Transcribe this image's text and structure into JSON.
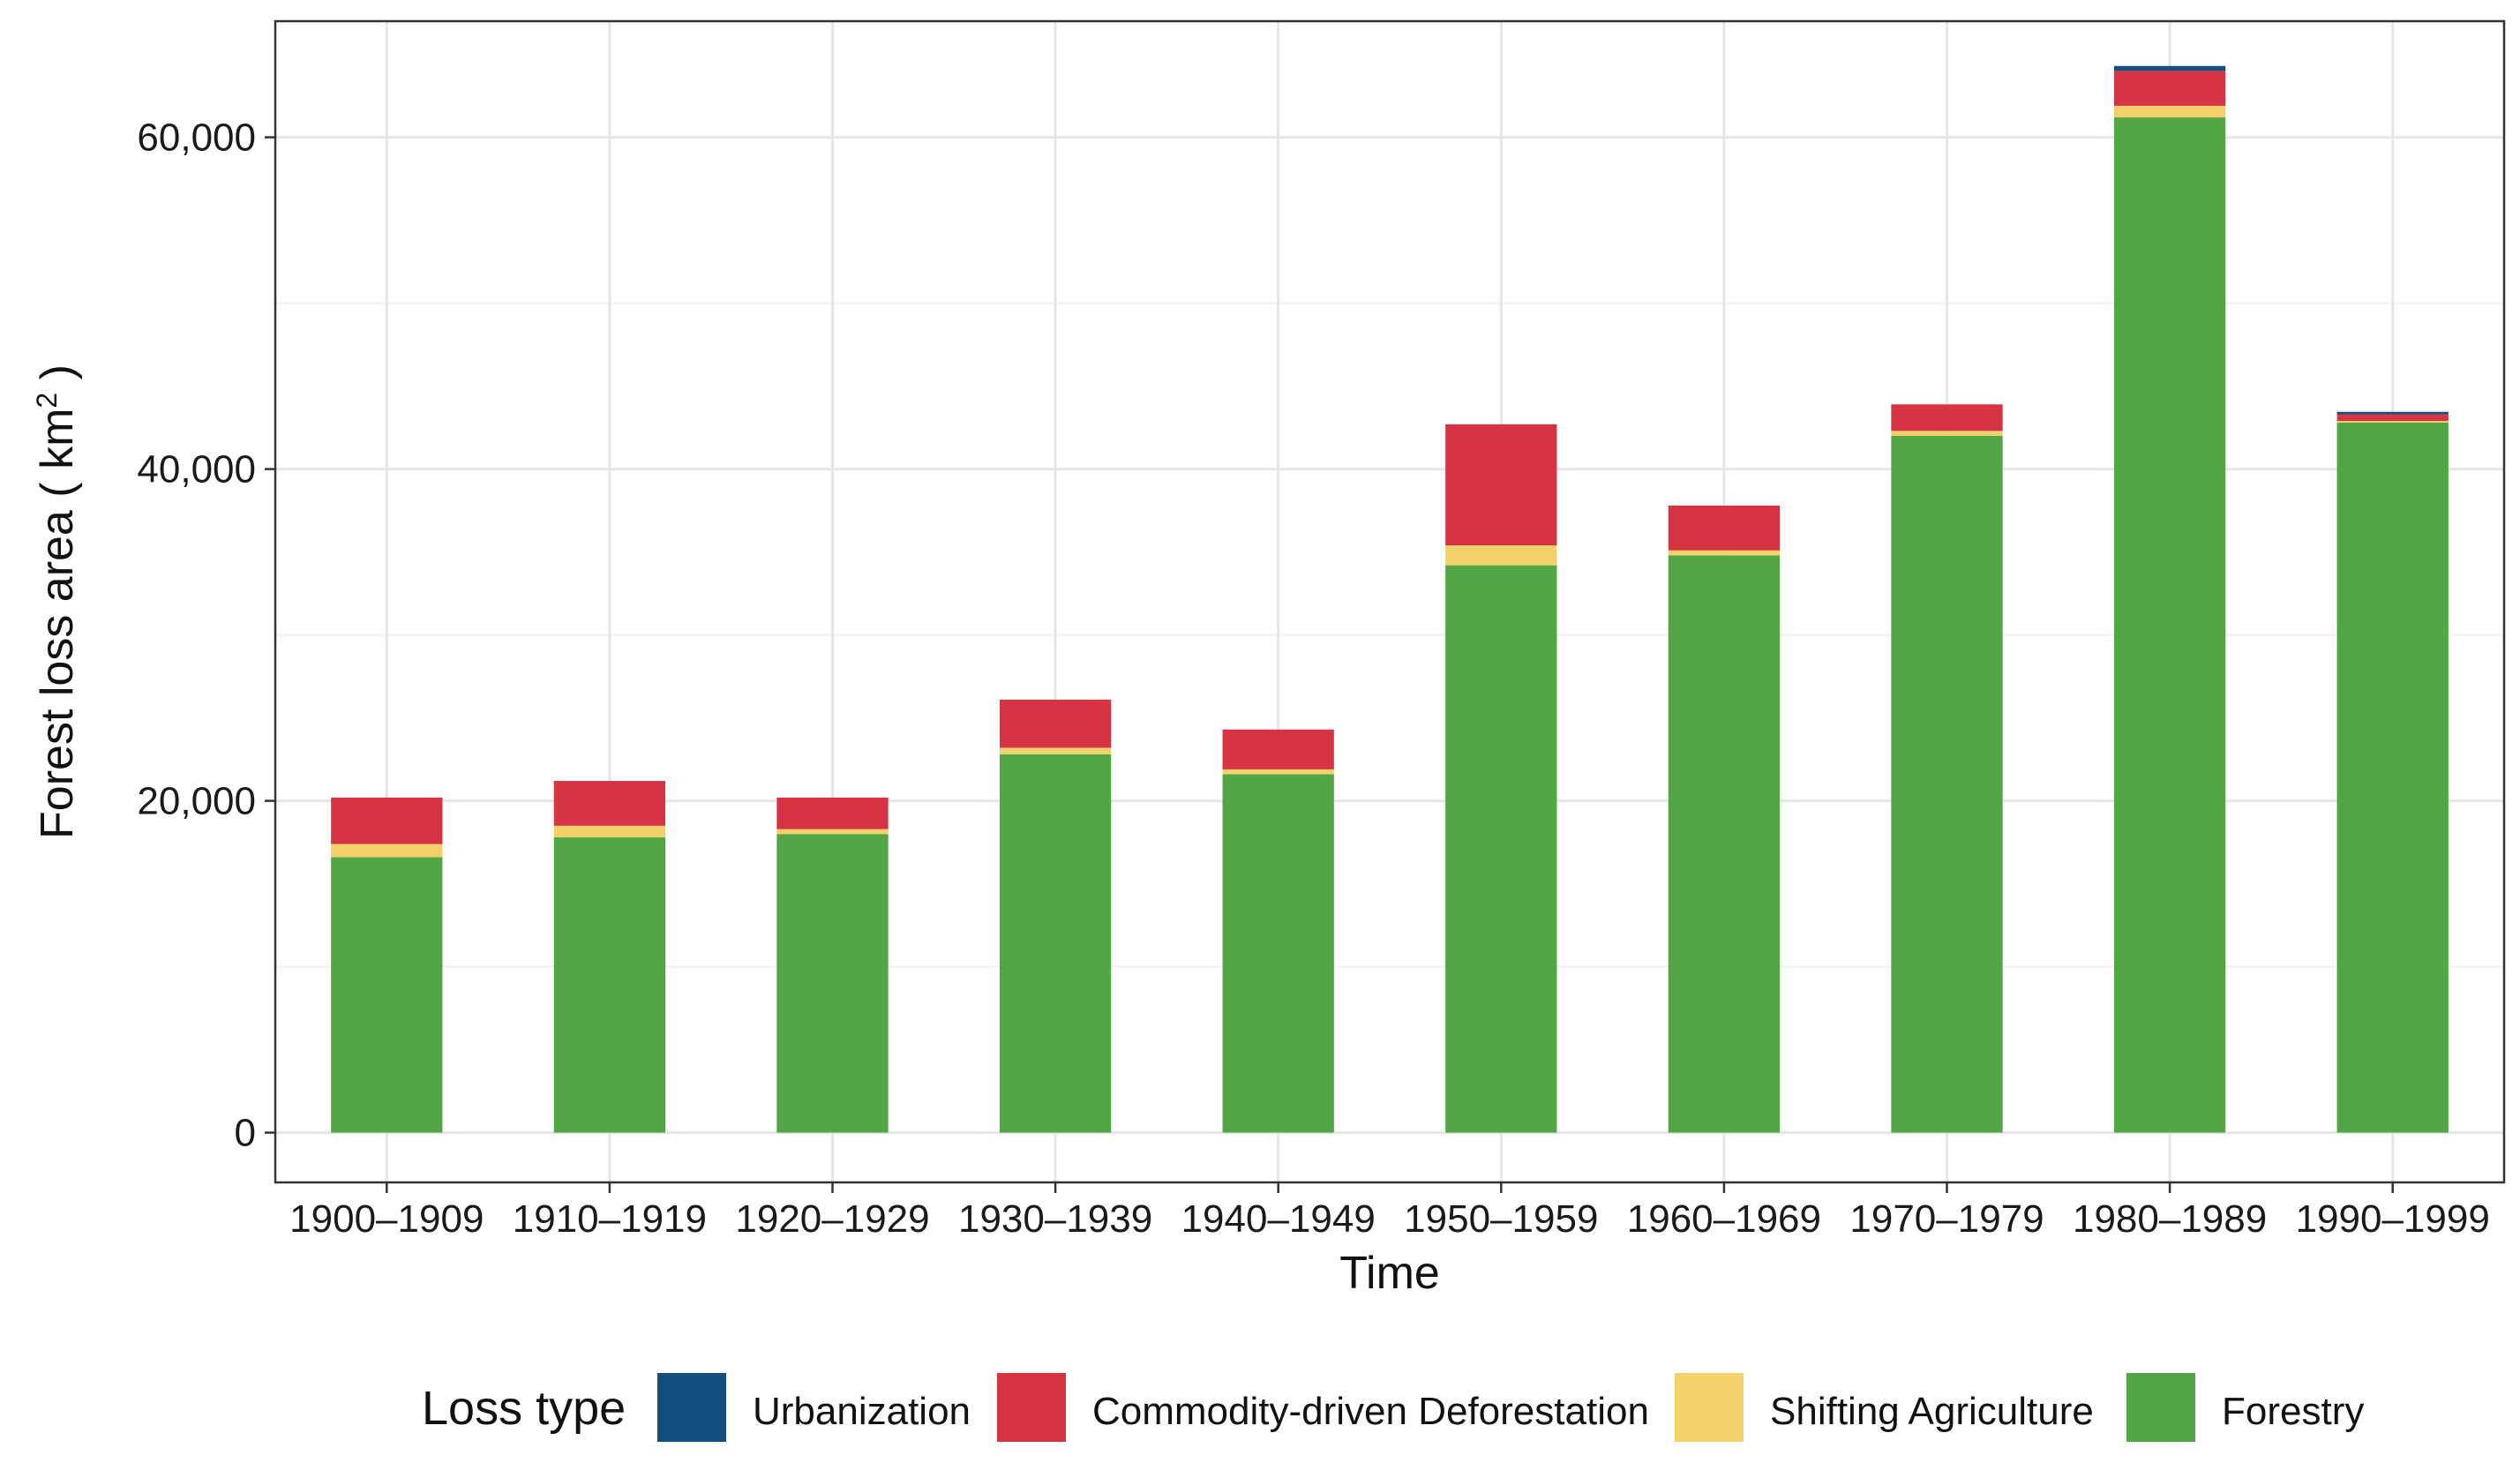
{
  "chart_data": {
    "type": "bar",
    "stacked": true,
    "title": "",
    "xlabel": "Time",
    "ylabel": "Forest loss area ( km",
    "ylabel_superscript": "2",
    "ylabel_close": " )",
    "ylim": [
      -3000,
      67000
    ],
    "yticks": [
      0,
      20000,
      40000,
      60000
    ],
    "ytick_labels": [
      "0",
      "20,000",
      "40,000",
      "60,000"
    ],
    "grid": true,
    "categories": [
      "1900–1909",
      "1910–1919",
      "1920–1929",
      "1930–1939",
      "1940–1949",
      "1950–1959",
      "1960–1969",
      "1970–1979",
      "1980–1989",
      "1990–1999"
    ],
    "series": [
      {
        "name": "Forestry",
        "color": "#52A646",
        "values": [
          16600,
          17800,
          18000,
          22800,
          21600,
          34200,
          34800,
          42000,
          61200,
          42800
        ]
      },
      {
        "name": "Shifting Agriculture",
        "color": "#F2D16B",
        "values": [
          800,
          700,
          300,
          400,
          300,
          1200,
          300,
          300,
          700,
          100
        ]
      },
      {
        "name": "Commodity-driven Deforestation",
        "color": "#D63443",
        "values": [
          2800,
          2700,
          1900,
          2900,
          2400,
          7300,
          2700,
          1600,
          2100,
          400
        ]
      },
      {
        "name": "Urbanization",
        "color": "#14507E",
        "values": [
          0,
          0,
          0,
          0,
          0,
          0,
          0,
          0,
          300,
          150
        ]
      }
    ],
    "legend": {
      "title": "Loss type",
      "position": "bottom",
      "order": [
        "Urbanization",
        "Commodity-driven Deforestation",
        "Shifting Agriculture",
        "Forestry"
      ]
    }
  }
}
